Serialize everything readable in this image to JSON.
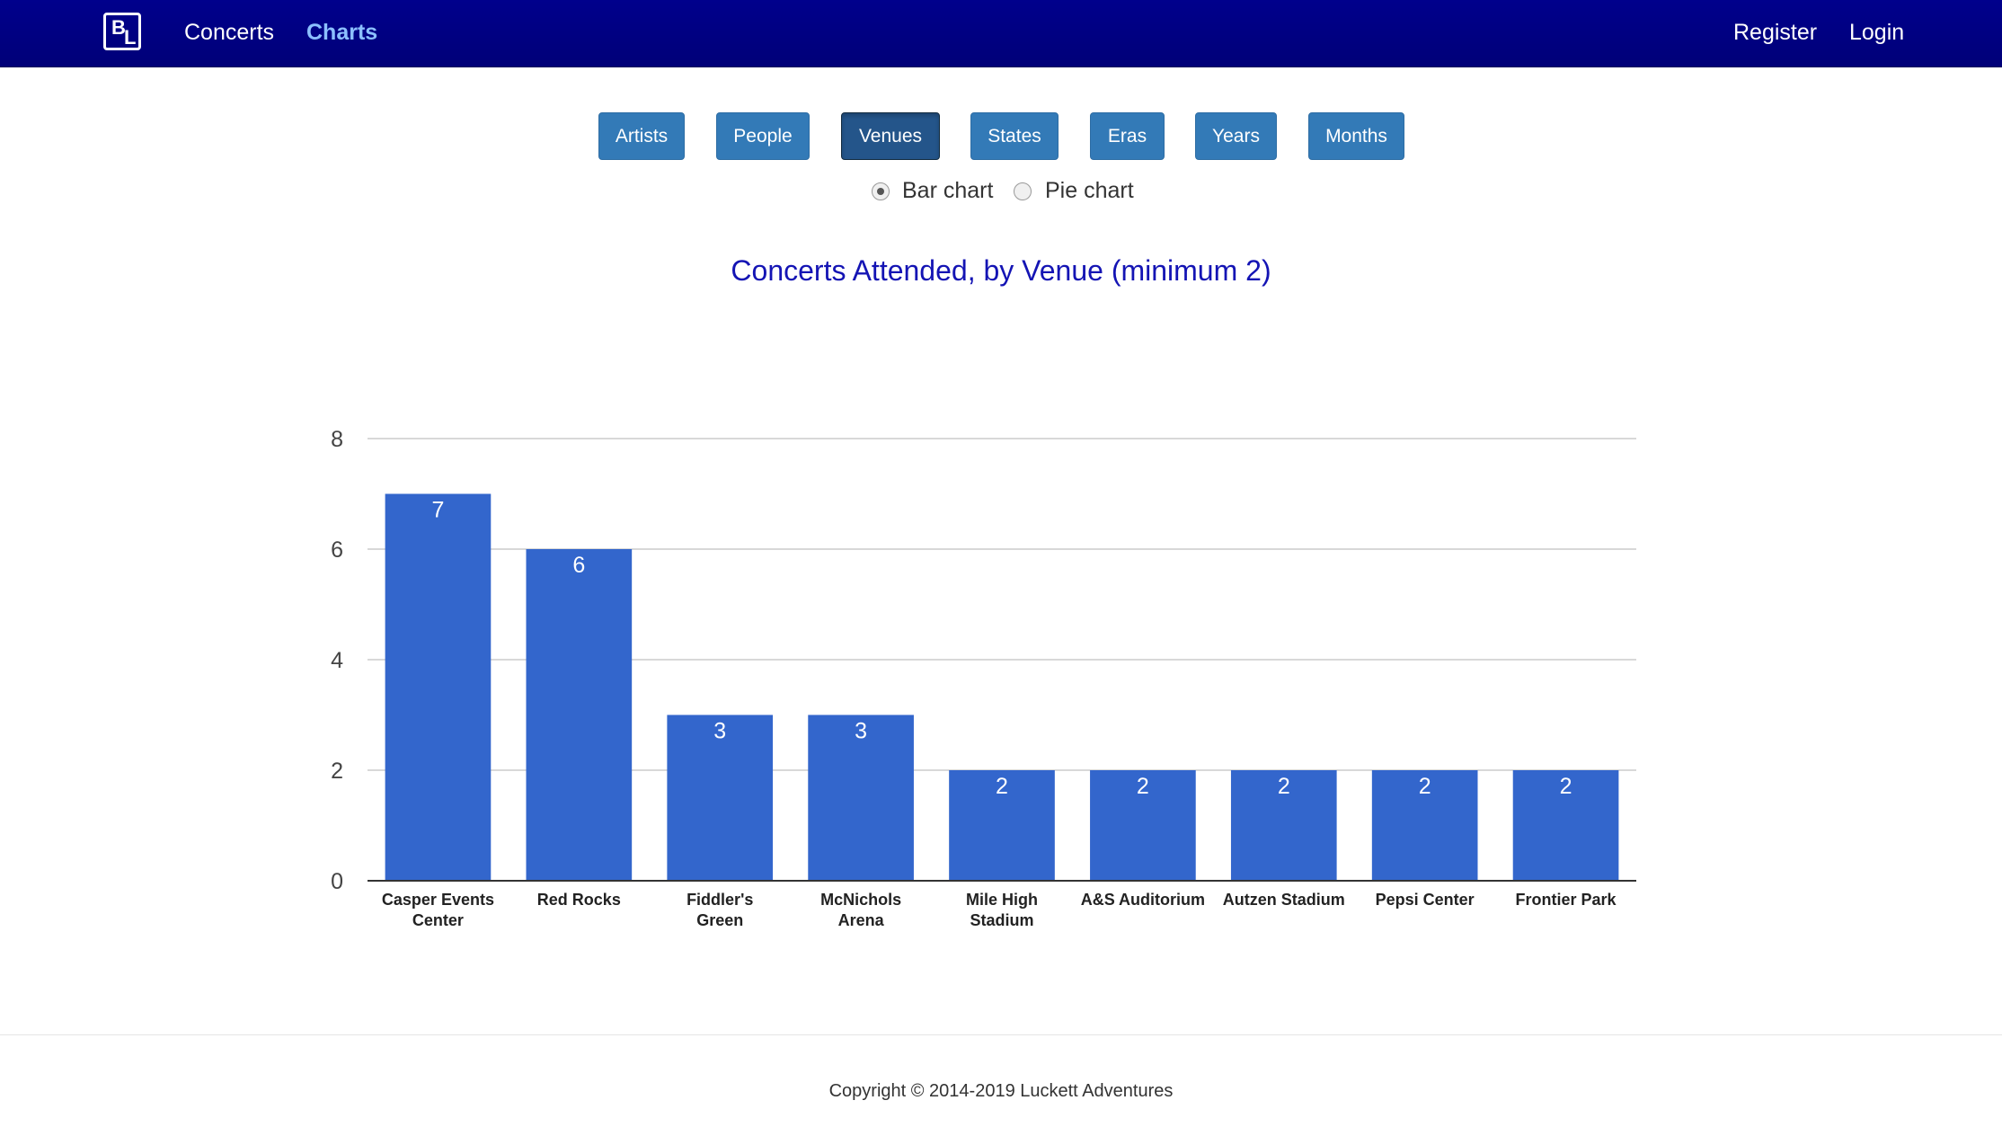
{
  "nav": {
    "brand_b": "B",
    "brand_l": "L",
    "concerts": "Concerts",
    "charts": "Charts",
    "register": "Register",
    "login": "Login"
  },
  "chart_buttons": [
    "Artists",
    "People",
    "Venues",
    "States",
    "Eras",
    "Years",
    "Months"
  ],
  "active_button": "Venues",
  "chart_type_options": {
    "bar": "Bar chart",
    "pie": "Pie chart",
    "selected": "bar"
  },
  "chart_data": {
    "type": "bar",
    "title": "Concerts Attended, by Venue (minimum 2)",
    "categories": [
      "Casper Events Center",
      "Red Rocks",
      "Fiddler's Green",
      "McNichols Arena",
      "Mile High Stadium",
      "A&S Auditorium",
      "Autzen Stadium",
      "Pepsi Center",
      "Frontier Park"
    ],
    "values": [
      7,
      6,
      3,
      3,
      2,
      2,
      2,
      2,
      2
    ],
    "ylim": [
      0,
      8
    ],
    "yticks": [
      0,
      2,
      4,
      6,
      8
    ],
    "grid": true,
    "bar_color": "#3366cc",
    "data_labels": true
  },
  "footer": {
    "copyright": "Copyright © 2014-2019 Luckett Adventures"
  }
}
